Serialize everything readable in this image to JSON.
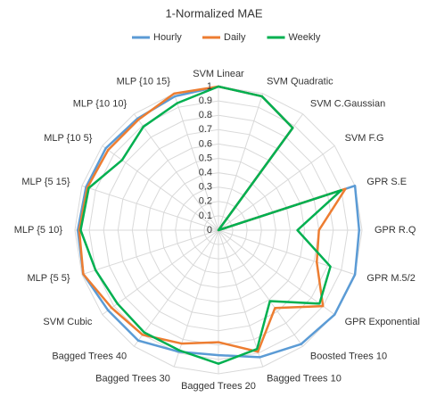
{
  "chart_data": {
    "type": "radar",
    "title": "1-Normalized MAE",
    "categories": [
      "SVM Linear",
      "SVM Quadratic",
      "SVM C.Gaussian",
      "SVM F.G",
      "GPR S.E",
      "GPR R.Q",
      "GPR M.5/2",
      "GPR Exponential",
      "Boosted Trees 10",
      "Bagged Trees 10",
      "Bagged Trees 20",
      "Bagged Trees 30",
      "Bagged Trees 40",
      "SVM Cubic",
      "MLP {5  5}",
      "MLP  {5 10}",
      "MLP {5 15}",
      "MLP {10  5}",
      "MLP {10 10}",
      "MLP {10 15}"
    ],
    "series": [
      {
        "name": "Hourly",
        "color": "#5b9bd5",
        "values": [
          1.0,
          0.98,
          0.88,
          0,
          1.0,
          0.98,
          1.0,
          1.0,
          0.98,
          0.93,
          0.87,
          0.89,
          0.95,
          0.95,
          0.99,
          0.98,
          0.97,
          0.97,
          0.96,
          0.98
        ]
      },
      {
        "name": "Daily",
        "color": "#ed7d31",
        "values": [
          1.0,
          0.98,
          0.88,
          0,
          0.93,
          0.7,
          0.72,
          0.9,
          0.67,
          0.89,
          0.78,
          0.83,
          0.9,
          0.92,
          0.99,
          0.97,
          0.96,
          0.95,
          0.95,
          1.0
        ]
      },
      {
        "name": "Weekly",
        "color": "#00b050",
        "values": [
          1.0,
          0.98,
          0.88,
          0,
          0.9,
          0.55,
          0.82,
          0.87,
          0.61,
          0.87,
          0.93,
          0.88,
          0.88,
          0.87,
          0.9,
          0.96,
          0.95,
          0.83,
          0.89,
          0.93
        ]
      }
    ],
    "ylim": [
      0,
      1
    ],
    "yticks": [
      0,
      0.1,
      0.2,
      0.3,
      0.4,
      0.5,
      0.6,
      0.7,
      0.8,
      0.9,
      1
    ],
    "grid": true,
    "legend": "top"
  }
}
